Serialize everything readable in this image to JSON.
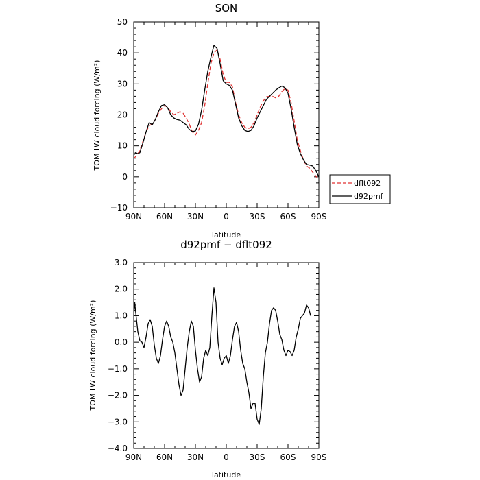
{
  "chart_data": [
    {
      "type": "line",
      "title": "SON",
      "xlabel": "latitude",
      "ylabel": "TOM LW cloud forcing (W/m²)",
      "xlim": [
        90,
        -90
      ],
      "ylim": [
        -10,
        50
      ],
      "x_ticks": [
        90,
        60,
        30,
        0,
        -30,
        -60,
        -90
      ],
      "x_tick_labels": [
        "90N",
        "60N",
        "30N",
        "0",
        "30S",
        "60S",
        "90S"
      ],
      "y_ticks": [
        -10,
        0,
        10,
        20,
        30,
        40,
        50
      ],
      "y_tick_labels": [
        "−10",
        "0",
        "10",
        "20",
        "30",
        "40",
        "50"
      ],
      "legend": "right",
      "series": [
        {
          "name": "dflt092",
          "color": "#e03030",
          "dash": "dashed",
          "points": [
            [
              90,
              5.8
            ],
            [
              87,
              7.0
            ],
            [
              84,
              8.5
            ],
            [
              81,
              11.5
            ],
            [
              78,
              14.5
            ],
            [
              75,
              16.5
            ],
            [
              72,
              17.0
            ],
            [
              69,
              18.5
            ],
            [
              66,
              20.5
            ],
            [
              63,
              22.0
            ],
            [
              60,
              23.0
            ],
            [
              57,
              22.5
            ],
            [
              54,
              21.0
            ],
            [
              51,
              20.0
            ],
            [
              48,
              20.5
            ],
            [
              45,
              21.0
            ],
            [
              42,
              20.5
            ],
            [
              39,
              19.0
            ],
            [
              36,
              17.0
            ],
            [
              33,
              14.5
            ],
            [
              30,
              13.5
            ],
            [
              27,
              15.0
            ],
            [
              24,
              17.5
            ],
            [
              21,
              23.0
            ],
            [
              18,
              30.0
            ],
            [
              15,
              36.5
            ],
            [
              12,
              40.0
            ],
            [
              9,
              41.0
            ],
            [
              6,
              38.0
            ],
            [
              3,
              33.0
            ],
            [
              0,
              30.5
            ],
            [
              -3,
              30.5
            ],
            [
              -6,
              29.0
            ],
            [
              -9,
              24.0
            ],
            [
              -12,
              20.0
            ],
            [
              -15,
              17.5
            ],
            [
              -18,
              16.0
            ],
            [
              -21,
              15.5
            ],
            [
              -24,
              16.0
            ],
            [
              -27,
              17.5
            ],
            [
              -30,
              20.0
            ],
            [
              -33,
              22.5
            ],
            [
              -36,
              24.5
            ],
            [
              -39,
              25.8
            ],
            [
              -42,
              26.0
            ],
            [
              -45,
              26.0
            ],
            [
              -48,
              25.5
            ],
            [
              -51,
              26.0
            ],
            [
              -54,
              27.5
            ],
            [
              -57,
              28.5
            ],
            [
              -60,
              28.0
            ],
            [
              -63,
              24.0
            ],
            [
              -66,
              18.0
            ],
            [
              -69,
              12.0
            ],
            [
              -72,
              8.5
            ],
            [
              -75,
              5.5
            ],
            [
              -78,
              3.5
            ],
            [
              -81,
              2.8
            ],
            [
              -84,
              1.5
            ],
            [
              -87,
              0.3
            ],
            [
              -90,
              -1.0
            ]
          ]
        },
        {
          "name": "d92pmf",
          "color": "#000000",
          "dash": "solid",
          "points": [
            [
              90,
              7.0
            ],
            [
              88,
              7.8
            ],
            [
              86,
              7.4
            ],
            [
              84,
              7.8
            ],
            [
              81,
              11.0
            ],
            [
              78,
              14.5
            ],
            [
              75,
              17.5
            ],
            [
              72,
              16.8
            ],
            [
              69,
              18.5
            ],
            [
              66,
              21.0
            ],
            [
              63,
              23.0
            ],
            [
              60,
              23.3
            ],
            [
              57,
              22.3
            ],
            [
              54,
              20.0
            ],
            [
              51,
              19.0
            ],
            [
              48,
              18.5
            ],
            [
              45,
              18.3
            ],
            [
              42,
              17.5
            ],
            [
              39,
              16.8
            ],
            [
              36,
              15.3
            ],
            [
              33,
              14.6
            ],
            [
              30,
              14.8
            ],
            [
              27,
              17.0
            ],
            [
              24,
              21.5
            ],
            [
              21,
              28.0
            ],
            [
              18,
              34.0
            ],
            [
              15,
              38.5
            ],
            [
              12,
              42.5
            ],
            [
              9,
              41.5
            ],
            [
              6,
              36.5
            ],
            [
              3,
              31.0
            ],
            [
              0,
              30.0
            ],
            [
              -3,
              29.5
            ],
            [
              -6,
              28.0
            ],
            [
              -9,
              23.5
            ],
            [
              -12,
              19.0
            ],
            [
              -15,
              16.5
            ],
            [
              -18,
              15.0
            ],
            [
              -21,
              14.6
            ],
            [
              -24,
              15.0
            ],
            [
              -27,
              16.5
            ],
            [
              -30,
              19.0
            ],
            [
              -33,
              21.0
            ],
            [
              -36,
              23.0
            ],
            [
              -39,
              25.0
            ],
            [
              -42,
              26.0
            ],
            [
              -45,
              27.0
            ],
            [
              -48,
              28.0
            ],
            [
              -51,
              28.7
            ],
            [
              -54,
              29.3
            ],
            [
              -57,
              28.8
            ],
            [
              -60,
              27.0
            ],
            [
              -63,
              22.0
            ],
            [
              -66,
              16.0
            ],
            [
              -69,
              10.5
            ],
            [
              -72,
              7.5
            ],
            [
              -75,
              5.5
            ],
            [
              -78,
              4.0
            ],
            [
              -81,
              3.8
            ],
            [
              -84,
              3.5
            ],
            [
              -87,
              2.0
            ],
            [
              -90,
              0.0
            ]
          ]
        }
      ]
    },
    {
      "type": "line",
      "title": "d92pmf − dflt092",
      "xlabel": "latitude",
      "ylabel": "TOM LW cloud forcing (W/m²)",
      "xlim": [
        90,
        -90
      ],
      "ylim": [
        -4.0,
        3.0
      ],
      "x_ticks": [
        90,
        60,
        30,
        0,
        -30,
        -60,
        -90
      ],
      "x_tick_labels": [
        "90N",
        "60N",
        "30N",
        "0",
        "30S",
        "60S",
        "90S"
      ],
      "y_ticks": [
        -4,
        -3,
        -2,
        -1,
        0,
        1,
        2,
        3
      ],
      "y_tick_labels": [
        "−4.0",
        "−3.0",
        "−2.0",
        "−1.0",
        "0.0",
        "1.0",
        "2.0",
        "3.0"
      ],
      "series": [
        {
          "color": "#000000",
          "dash": "solid",
          "points": [
            [
              90,
              1.0
            ],
            [
              89,
              1.5
            ],
            [
              88,
              1.1
            ],
            [
              86,
              0.4
            ],
            [
              84,
              0.05
            ],
            [
              82,
              0.0
            ],
            [
              80,
              -0.2
            ],
            [
              78,
              0.2
            ],
            [
              76,
              0.7
            ],
            [
              74,
              0.85
            ],
            [
              72,
              0.6
            ],
            [
              70,
              -0.1
            ],
            [
              68,
              -0.6
            ],
            [
              66,
              -0.8
            ],
            [
              64,
              -0.5
            ],
            [
              62,
              0.1
            ],
            [
              60,
              0.6
            ],
            [
              58,
              0.8
            ],
            [
              56,
              0.6
            ],
            [
              54,
              0.2
            ],
            [
              52,
              0.0
            ],
            [
              50,
              -0.4
            ],
            [
              48,
              -1.0
            ],
            [
              46,
              -1.6
            ],
            [
              44,
              -2.0
            ],
            [
              42,
              -1.8
            ],
            [
              40,
              -1.0
            ],
            [
              38,
              -0.2
            ],
            [
              36,
              0.4
            ],
            [
              34,
              0.8
            ],
            [
              32,
              0.6
            ],
            [
              30,
              -0.3
            ],
            [
              28,
              -1.0
            ],
            [
              26,
              -1.5
            ],
            [
              24,
              -1.3
            ],
            [
              22,
              -0.6
            ],
            [
              20,
              -0.3
            ],
            [
              18,
              -0.5
            ],
            [
              16,
              -0.2
            ],
            [
              14,
              1.0
            ],
            [
              12,
              2.05
            ],
            [
              10,
              1.5
            ],
            [
              8,
              0.0
            ],
            [
              6,
              -0.6
            ],
            [
              4,
              -0.85
            ],
            [
              2,
              -0.6
            ],
            [
              0,
              -0.5
            ],
            [
              -2,
              -0.8
            ],
            [
              -4,
              -0.5
            ],
            [
              -6,
              0.1
            ],
            [
              -8,
              0.6
            ],
            [
              -10,
              0.75
            ],
            [
              -12,
              0.4
            ],
            [
              -14,
              -0.3
            ],
            [
              -16,
              -0.8
            ],
            [
              -18,
              -1.0
            ],
            [
              -20,
              -1.5
            ],
            [
              -22,
              -1.9
            ],
            [
              -24,
              -2.5
            ],
            [
              -26,
              -2.3
            ],
            [
              -28,
              -2.3
            ],
            [
              -30,
              -2.9
            ],
            [
              -32,
              -3.1
            ],
            [
              -34,
              -2.5
            ],
            [
              -36,
              -1.3
            ],
            [
              -38,
              -0.4
            ],
            [
              -40,
              0.0
            ],
            [
              -42,
              0.7
            ],
            [
              -44,
              1.2
            ],
            [
              -46,
              1.3
            ],
            [
              -48,
              1.2
            ],
            [
              -50,
              0.8
            ],
            [
              -52,
              0.3
            ],
            [
              -54,
              0.1
            ],
            [
              -56,
              -0.3
            ],
            [
              -58,
              -0.5
            ],
            [
              -60,
              -0.3
            ],
            [
              -62,
              -0.35
            ],
            [
              -64,
              -0.5
            ],
            [
              -66,
              -0.3
            ],
            [
              -68,
              0.2
            ],
            [
              -70,
              0.5
            ],
            [
              -72,
              0.9
            ],
            [
              -74,
              1.0
            ],
            [
              -76,
              1.1
            ],
            [
              -78,
              1.4
            ],
            [
              -80,
              1.3
            ],
            [
              -82,
              1.0
            ]
          ]
        }
      ]
    }
  ]
}
